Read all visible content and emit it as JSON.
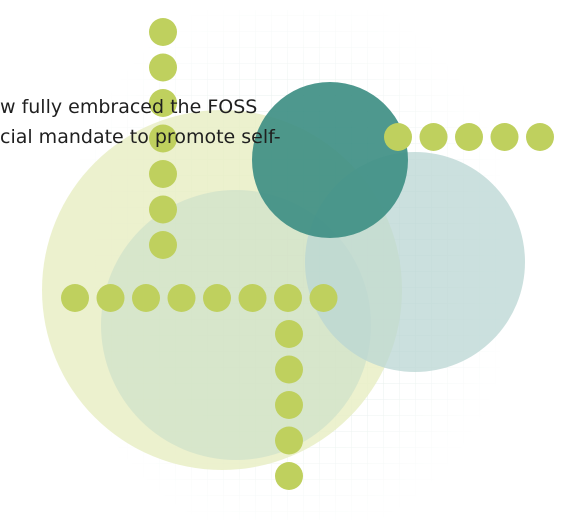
{
  "text": {
    "lines": [
      "w fully embraced the FOSS",
      "cial mandate to promote self-"
    ]
  }
}
